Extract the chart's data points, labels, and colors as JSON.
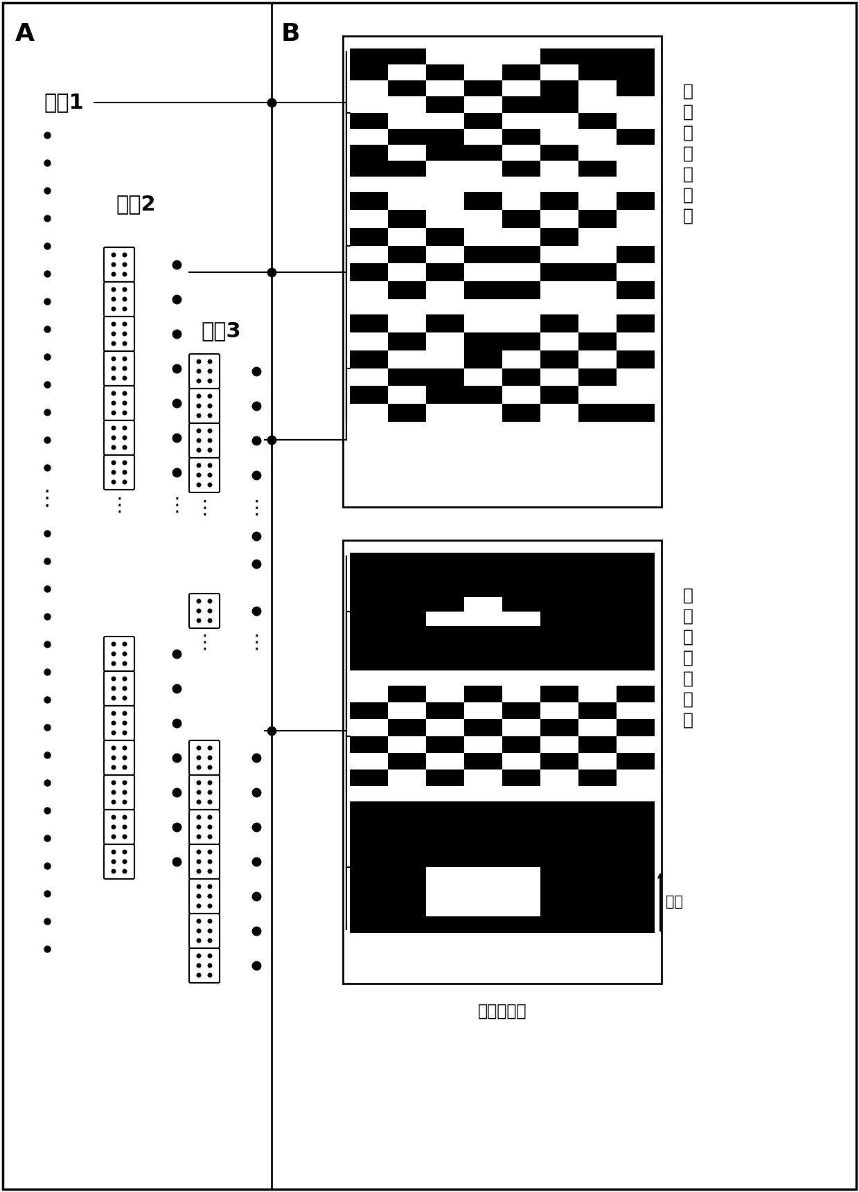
{
  "title_A": "A",
  "title_B": "B",
  "label_scale1": "尺剧1",
  "label_scale2": "尺剧2",
  "label_scale3": "尺剧3",
  "label_phase_chars": [
    "基",
    "于",
    "相",
    "位",
    "相",
    "关",
    "性"
  ],
  "label_amp_chars": [
    "基",
    "于",
    "幅",
    "値",
    "相",
    "关",
    "性"
  ],
  "label_channel": "通道",
  "label_eeg": "脑电各通道",
  "bg_color": "#ffffff",
  "border_color": "#000000",
  "phase_matrix1": [
    [
      0,
      0,
      1,
      1,
      1,
      0,
      0,
      0
    ],
    [
      0,
      1,
      0,
      1,
      0,
      1,
      0,
      0
    ],
    [
      1,
      0,
      1,
      0,
      1,
      0,
      1,
      0
    ],
    [
      1,
      1,
      0,
      1,
      0,
      0,
      1,
      1
    ],
    [
      0,
      1,
      1,
      0,
      1,
      1,
      0,
      1
    ],
    [
      1,
      0,
      0,
      1,
      0,
      1,
      1,
      0
    ],
    [
      0,
      1,
      0,
      0,
      1,
      0,
      1,
      1
    ],
    [
      0,
      0,
      1,
      1,
      0,
      1,
      0,
      1
    ]
  ],
  "phase_matrix2": [
    [
      0,
      1,
      1,
      0,
      1,
      0,
      1,
      0
    ],
    [
      1,
      0,
      1,
      1,
      0,
      1,
      0,
      1
    ],
    [
      0,
      1,
      0,
      1,
      1,
      0,
      1,
      1
    ],
    [
      1,
      0,
      1,
      0,
      0,
      1,
      1,
      0
    ],
    [
      0,
      1,
      0,
      1,
      1,
      0,
      0,
      1
    ],
    [
      1,
      0,
      1,
      0,
      0,
      1,
      1,
      0
    ]
  ],
  "phase_matrix3": [
    [
      0,
      1,
      0,
      1,
      1,
      0,
      1,
      0
    ],
    [
      1,
      0,
      1,
      0,
      0,
      1,
      0,
      1
    ],
    [
      0,
      1,
      1,
      0,
      1,
      0,
      1,
      0
    ],
    [
      1,
      0,
      0,
      1,
      0,
      1,
      0,
      1
    ],
    [
      0,
      1,
      0,
      0,
      1,
      0,
      1,
      1
    ],
    [
      1,
      0,
      1,
      1,
      0,
      1,
      0,
      0
    ]
  ],
  "amp_matrix1": [
    [
      0,
      0,
      0,
      0,
      0,
      0,
      0,
      0
    ],
    [
      0,
      0,
      0,
      0,
      0,
      0,
      0,
      0
    ],
    [
      0,
      0,
      0,
      0,
      0,
      0,
      0,
      0
    ],
    [
      0,
      0,
      0,
      1,
      0,
      0,
      0,
      0
    ],
    [
      0,
      0,
      1,
      1,
      1,
      0,
      0,
      0
    ],
    [
      0,
      0,
      0,
      0,
      0,
      0,
      0,
      0
    ],
    [
      0,
      0,
      0,
      0,
      0,
      0,
      0,
      0
    ],
    [
      0,
      0,
      0,
      0,
      0,
      0,
      0,
      0
    ]
  ],
  "amp_matrix2": [
    [
      1,
      0,
      1,
      0,
      1,
      0,
      1,
      0
    ],
    [
      0,
      1,
      0,
      1,
      0,
      1,
      0,
      1
    ],
    [
      1,
      0,
      1,
      0,
      1,
      0,
      1,
      0
    ],
    [
      0,
      1,
      0,
      1,
      0,
      1,
      0,
      1
    ],
    [
      1,
      0,
      1,
      0,
      1,
      0,
      1,
      0
    ],
    [
      0,
      1,
      0,
      1,
      0,
      1,
      0,
      1
    ]
  ],
  "amp_matrix3": [
    [
      0,
      0,
      0,
      0,
      0,
      0,
      0,
      0
    ],
    [
      0,
      0,
      0,
      0,
      0,
      0,
      0,
      0
    ],
    [
      0,
      0,
      0,
      0,
      0,
      0,
      0,
      0
    ],
    [
      0,
      0,
      0,
      0,
      0,
      0,
      0,
      0
    ],
    [
      0,
      0,
      1,
      1,
      1,
      0,
      0,
      0
    ],
    [
      0,
      0,
      1,
      1,
      1,
      0,
      0,
      0
    ],
    [
      0,
      0,
      1,
      1,
      1,
      0,
      0,
      0
    ],
    [
      0,
      0,
      0,
      0,
      0,
      0,
      0,
      0
    ]
  ]
}
